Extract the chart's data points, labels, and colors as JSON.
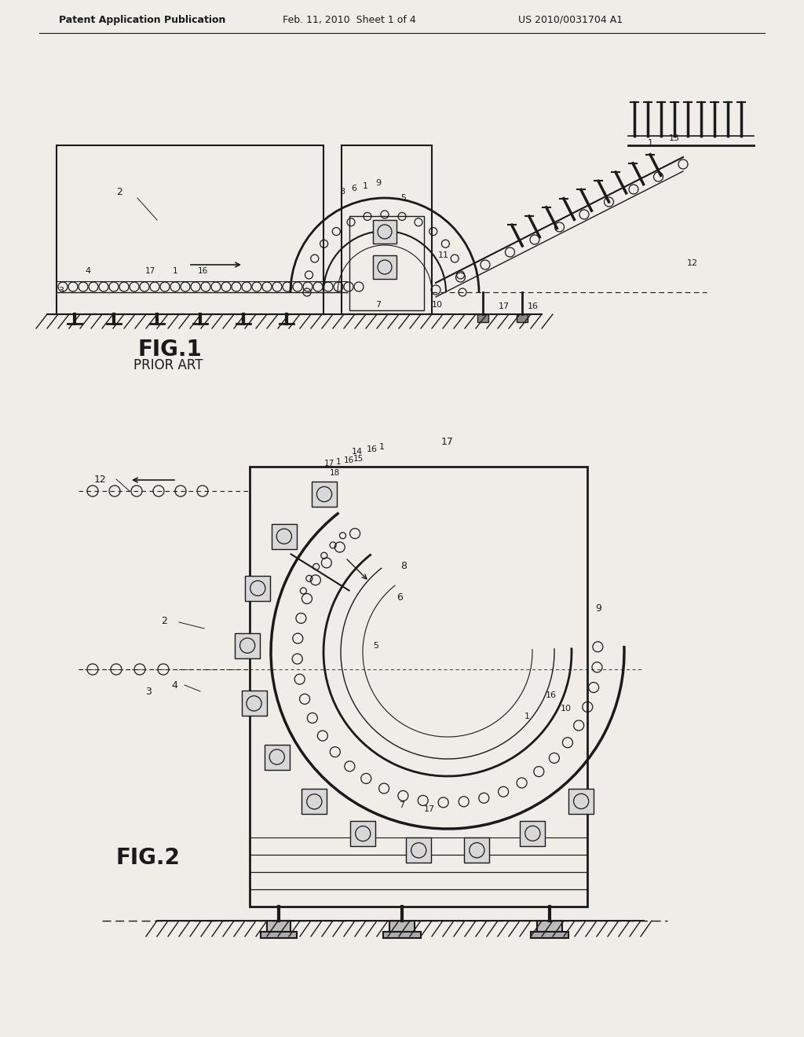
{
  "bg_color": "#f0ede8",
  "header_text1": "Patent Application Publication",
  "header_text2": "Feb. 11, 2010  Sheet 1 of 4",
  "header_text3": "US 2010/0031704 A1",
  "fig1_label": "FIG.1",
  "fig1_sublabel": "PRIOR ART",
  "fig2_label": "FIG.2",
  "line_color": "#1a1a1a"
}
